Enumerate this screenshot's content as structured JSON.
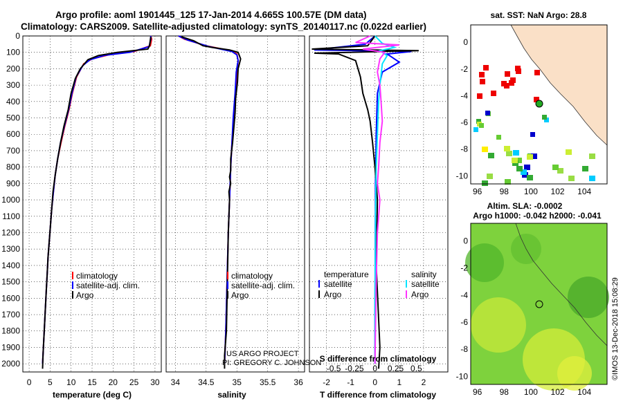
{
  "header": {
    "title_line1": "Argo profile: aoml 1901445_125 17-Jan-2014 4.665S 100.57E (DM data)",
    "title_line2": "Climatology: CARS2009. Satellite-adjusted climatology: synTS_20140117.nc (0.022d earlier)"
  },
  "colors": {
    "climatology": "#ff0000",
    "satellite": "#0000ff",
    "argo": "#000000",
    "sal_satellite": "#00e5ff",
    "sal_argo": "#ff33ff"
  },
  "depth_axis": {
    "min": 0,
    "max": 2050,
    "ticks": [
      0,
      100,
      200,
      300,
      400,
      500,
      600,
      700,
      800,
      900,
      1000,
      1100,
      1200,
      1300,
      1400,
      1500,
      1600,
      1700,
      1800,
      1900,
      2000
    ]
  },
  "chart_data": [
    {
      "type": "line",
      "panel": "temperature",
      "xlabel": "temperature (deg C)",
      "xlim": [
        -1.5,
        31.5
      ],
      "xticks": [
        0,
        5,
        10,
        15,
        20,
        25,
        30
      ],
      "y_inverted": true,
      "legend": [
        "climatology",
        "satellite-adj. clim.",
        "Argo"
      ],
      "series": [
        {
          "name": "climatology",
          "points": [
            [
              29,
              0
            ],
            [
              29.2,
              20
            ],
            [
              28.9,
              60
            ],
            [
              25,
              95
            ],
            [
              19,
              115
            ],
            [
              15,
              140
            ],
            [
              13,
              170
            ],
            [
              11.3,
              250
            ],
            [
              10.3,
              350
            ],
            [
              9.5,
              450
            ],
            [
              8.5,
              550
            ],
            [
              7.6,
              650
            ],
            [
              6.8,
              750
            ],
            [
              6.2,
              850
            ],
            [
              5.8,
              950
            ],
            [
              5.4,
              1050
            ],
            [
              5.1,
              1150
            ],
            [
              4.8,
              1250
            ],
            [
              4.5,
              1350
            ],
            [
              4.3,
              1450
            ],
            [
              4.1,
              1550
            ],
            [
              3.9,
              1650
            ],
            [
              3.7,
              1750
            ],
            [
              3.5,
              1850
            ],
            [
              3.3,
              1950
            ],
            [
              3.2,
              2000
            ]
          ]
        },
        {
          "name": "satellite-adj. clim.",
          "points": [
            [
              29,
              0
            ],
            [
              29,
              20
            ],
            [
              28.6,
              65
            ],
            [
              24,
              100
            ],
            [
              18,
              118
            ],
            [
              14.5,
              145
            ],
            [
              12.8,
              180
            ],
            [
              11.2,
              250
            ],
            [
              10.2,
              350
            ],
            [
              9.4,
              450
            ],
            [
              8.4,
              550
            ],
            [
              7.5,
              650
            ],
            [
              6.8,
              750
            ],
            [
              6.2,
              850
            ],
            [
              5.8,
              950
            ],
            [
              5.4,
              1050
            ],
            [
              5.1,
              1150
            ],
            [
              4.8,
              1250
            ],
            [
              4.5,
              1350
            ],
            [
              4.3,
              1450
            ],
            [
              4.1,
              1550
            ],
            [
              3.9,
              1650
            ],
            [
              3.7,
              1750
            ],
            [
              3.5,
              1850
            ],
            [
              3.3,
              1950
            ],
            [
              3.2,
              2000
            ]
          ]
        },
        {
          "name": "Argo",
          "points": [
            [
              29,
              5
            ],
            [
              28.7,
              60
            ],
            [
              28.3,
              80
            ],
            [
              21,
              100
            ],
            [
              16.5,
              120
            ],
            [
              14,
              145
            ],
            [
              12.2,
              200
            ],
            [
              11,
              260
            ],
            [
              10,
              350
            ],
            [
              9.3,
              450
            ],
            [
              8.3,
              550
            ],
            [
              7.5,
              650
            ],
            [
              6.8,
              750
            ],
            [
              6.2,
              850
            ],
            [
              5.7,
              950
            ],
            [
              5.4,
              1050
            ],
            [
              5.1,
              1150
            ],
            [
              4.8,
              1250
            ],
            [
              4.5,
              1350
            ],
            [
              4.3,
              1450
            ],
            [
              4.1,
              1550
            ],
            [
              3.9,
              1650
            ],
            [
              3.7,
              1750
            ],
            [
              3.5,
              1850
            ],
            [
              3.3,
              1950
            ],
            [
              3.2,
              2030
            ]
          ]
        }
      ]
    },
    {
      "type": "line",
      "panel": "salinity",
      "xlabel": "salinity",
      "xlim": [
        33.85,
        36.1
      ],
      "xticks": [
        34,
        34.5,
        35,
        35.5,
        36
      ],
      "xticklabels": [
        "34",
        "34.5",
        "35",
        "35.5",
        "36"
      ],
      "y_inverted": true,
      "legend": [
        "climatology",
        "satellite-adj. clim.",
        "Argo"
      ],
      "series": [
        {
          "name": "climatology",
          "points": [
            [
              34.05,
              0
            ],
            [
              34.15,
              20
            ],
            [
              34.5,
              60
            ],
            [
              34.9,
              90
            ],
            [
              35.0,
              110
            ],
            [
              35.02,
              150
            ],
            [
              35.0,
              220
            ],
            [
              34.98,
              350
            ],
            [
              34.95,
              500
            ],
            [
              34.92,
              650
            ],
            [
              34.9,
              800
            ],
            [
              34.88,
              1000
            ],
            [
              34.86,
              1200
            ],
            [
              34.84,
              1500
            ],
            [
              34.82,
              1800
            ],
            [
              34.8,
              2000
            ]
          ]
        },
        {
          "name": "satellite-adj. clim.",
          "points": [
            [
              34.05,
              0
            ],
            [
              34.2,
              25
            ],
            [
              34.55,
              65
            ],
            [
              34.92,
              95
            ],
            [
              35.0,
              115
            ],
            [
              35.02,
              150
            ],
            [
              34.99,
              220
            ],
            [
              34.97,
              350
            ],
            [
              34.94,
              500
            ],
            [
              34.92,
              650
            ],
            [
              34.9,
              800
            ],
            [
              34.88,
              1000
            ],
            [
              34.86,
              1200
            ],
            [
              34.84,
              1500
            ],
            [
              34.82,
              1800
            ],
            [
              34.8,
              2000
            ]
          ]
        },
        {
          "name": "Argo",
          "points": [
            [
              34.1,
              5
            ],
            [
              34.3,
              30
            ],
            [
              34.45,
              60
            ],
            [
              34.6,
              70
            ],
            [
              34.88,
              85
            ],
            [
              35.02,
              100
            ],
            [
              35.06,
              140
            ],
            [
              35.02,
              200
            ],
            [
              35.01,
              280
            ],
            [
              34.98,
              380
            ],
            [
              34.97,
              470
            ],
            [
              34.95,
              560
            ],
            [
              34.93,
              650
            ],
            [
              34.9,
              750
            ],
            [
              34.9,
              820
            ],
            [
              34.88,
              860
            ],
            [
              34.9,
              900
            ],
            [
              34.87,
              950
            ],
            [
              34.88,
              1000
            ],
            [
              34.86,
              1200
            ],
            [
              34.85,
              1400
            ],
            [
              34.84,
              1600
            ],
            [
              34.83,
              1800
            ],
            [
              34.8,
              1950
            ],
            [
              34.8,
              2030
            ]
          ]
        }
      ]
    },
    {
      "type": "line",
      "panel": "difference",
      "xlabel": "T difference from climatology",
      "xlabel_secondary": "S difference from climatology",
      "xlim": [
        -2.7,
        3.0
      ],
      "xticks": [
        -2,
        -1,
        0,
        1,
        2
      ],
      "xticklabels": [
        "-2",
        "-1",
        "0",
        "1",
        "2"
      ],
      "secondary_ticklabels": [
        "-0.5",
        "-0.25",
        "0",
        "0.25",
        "0.5"
      ],
      "y_inverted": true,
      "legend_left_title": "temperature",
      "legend_right_title": "salinity",
      "legend_left": [
        "satellite",
        "Argo"
      ],
      "legend_right": [
        "satellite",
        "Argo"
      ],
      "series": [
        {
          "name": "temperature satellite",
          "points": [
            [
              0,
              0
            ],
            [
              -0.4,
              50
            ],
            [
              -2.5,
              85
            ],
            [
              1.5,
              95
            ],
            [
              0.5,
              110
            ],
            [
              1.0,
              160
            ],
            [
              0.3,
              220
            ],
            [
              0.1,
              350
            ],
            [
              0.05,
              600
            ],
            [
              0.02,
              900
            ],
            [
              0.01,
              1300
            ],
            [
              0,
              1700
            ],
            [
              0,
              2000
            ]
          ]
        },
        {
          "name": "temperature Argo",
          "points": [
            [
              0,
              0
            ],
            [
              -0.3,
              60
            ],
            [
              -2.6,
              80
            ],
            [
              1.8,
              90
            ],
            [
              -2.5,
              105
            ],
            [
              -1.5,
              110
            ],
            [
              -0.8,
              150
            ],
            [
              -0.6,
              250
            ],
            [
              -0.5,
              350
            ],
            [
              -0.3,
              450
            ],
            [
              -0.2,
              520
            ],
            [
              -0.1,
              650
            ],
            [
              0,
              800
            ],
            [
              0.1,
              1000
            ],
            [
              0.05,
              1400
            ],
            [
              0.2,
              1900
            ],
            [
              0.15,
              2030
            ]
          ]
        },
        {
          "name": "salinity satellite",
          "points": [
            [
              0,
              0
            ],
            [
              0.3,
              45
            ],
            [
              0.8,
              70
            ],
            [
              0.2,
              90
            ],
            [
              0.5,
              120
            ],
            [
              0.3,
              170
            ],
            [
              0.2,
              300
            ],
            [
              0.15,
              400
            ],
            [
              0.1,
              600
            ],
            [
              0.05,
              800
            ],
            [
              0.02,
              1100
            ],
            [
              0.01,
              1400
            ],
            [
              0,
              1700
            ],
            [
              0,
              2000
            ]
          ]
        },
        {
          "name": "salinity Argo",
          "points": [
            [
              -0.2,
              0
            ],
            [
              -0.8,
              40
            ],
            [
              1.0,
              55
            ],
            [
              -0.5,
              80
            ],
            [
              0.4,
              100
            ],
            [
              0.2,
              140
            ],
            [
              0.1,
              220
            ],
            [
              0.2,
              300
            ],
            [
              0.25,
              400
            ],
            [
              0.3,
              520
            ],
            [
              0.2,
              650
            ],
            [
              0.15,
              800
            ],
            [
              0.1,
              900
            ],
            [
              0.2,
              1000
            ],
            [
              0.1,
              1200
            ],
            [
              0.05,
              1500
            ],
            [
              0.02,
              1800
            ],
            [
              0,
              2000
            ]
          ]
        }
      ]
    },
    {
      "type": "heatmap",
      "panel": "sat. SST map",
      "title": "sat. SST: NaN Argo: 28.8",
      "xlim": [
        95.5,
        105.7
      ],
      "ylim": [
        -10.6,
        1.3
      ],
      "xticks": [
        96,
        98,
        100,
        102,
        104
      ],
      "yticks": [
        0,
        -2,
        -4,
        -6,
        -8,
        -10
      ],
      "marker": [
        100.57,
        -4.665
      ]
    },
    {
      "type": "heatmap",
      "panel": "altimetry SLA map",
      "title": "Altim. SLA: -0.0002",
      "subtitle": "Argo h1000: -0.042 h2000: -0.041",
      "xlim": [
        95.5,
        105.7
      ],
      "ylim": [
        -10.6,
        1.3
      ],
      "xticks": [
        96,
        98,
        100,
        102,
        104
      ],
      "yticks": [
        0,
        -2,
        -4,
        -6,
        -8,
        -10
      ],
      "marker": [
        100.57,
        -4.665
      ]
    }
  ],
  "credits": {
    "project": "US ARGO PROJECT",
    "pi": "PI: GREGORY C. JOHNSON",
    "stamp": "©IMOS 13-Dec-2018 15:08:29"
  }
}
